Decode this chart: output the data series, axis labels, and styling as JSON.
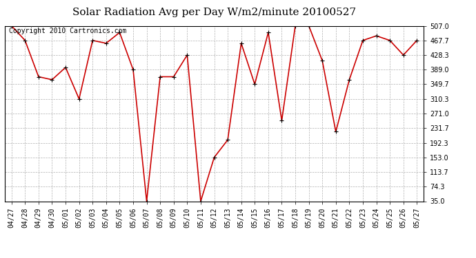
{
  "title": "Solar Radiation Avg per Day W/m2/minute 20100527",
  "copyright": "Copyright 2010 Cartronics.com",
  "dates": [
    "04/27",
    "04/28",
    "04/29",
    "04/30",
    "05/01",
    "05/02",
    "05/03",
    "05/04",
    "05/05",
    "05/06",
    "05/07",
    "05/08",
    "05/09",
    "05/10",
    "05/11",
    "05/12",
    "05/13",
    "05/14",
    "05/15",
    "05/16",
    "05/17",
    "05/18",
    "05/19",
    "05/20",
    "05/21",
    "05/22",
    "05/23",
    "05/24",
    "05/25",
    "05/26",
    "05/27"
  ],
  "values": [
    507.0,
    467.7,
    370.0,
    362.0,
    395.0,
    310.3,
    467.7,
    460.0,
    489.0,
    389.0,
    35.0,
    370.0,
    370.0,
    428.3,
    35.0,
    153.0,
    200.0,
    460.0,
    349.7,
    489.0,
    252.0,
    507.0,
    507.0,
    413.0,
    222.0,
    362.0,
    467.7,
    480.0,
    467.7,
    428.3,
    467.7
  ],
  "line_color": "#cc0000",
  "marker": "+",
  "bg_color": "#ffffff",
  "grid_color": "#b0b0b0",
  "ylim": [
    35.0,
    507.0
  ],
  "yticks": [
    35.0,
    74.3,
    113.7,
    153.0,
    192.3,
    231.7,
    271.0,
    310.3,
    349.7,
    389.0,
    428.3,
    467.7,
    507.0
  ],
  "title_fontsize": 11,
  "copyright_fontsize": 7,
  "tick_fontsize": 7
}
